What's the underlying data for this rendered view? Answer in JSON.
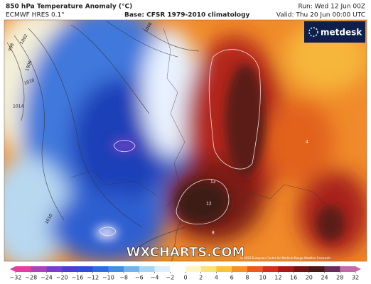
{
  "header": {
    "title": "850 hPa Temperature Anomaly (°C)",
    "model": "ECMWF HRES 0.1°",
    "base": "Base: CFSR 1979-2010 climatology",
    "run": "Run: Wed 12 Jun 00Z",
    "valid": "Valid: Thu 20 Jun 00:00 UTC"
  },
  "logo": "metdesk",
  "watermark": "WXCHARTS.COM",
  "copyright": "© 2020 European Centre for Medium-Range Weather Forecasts",
  "isobar_labels": [
    "998",
    "1002",
    "1006",
    "1010",
    "1014",
    "1010",
    "1006"
  ],
  "contour_labels": [
    "12",
    "12",
    "8",
    "4"
  ],
  "colorbar": {
    "ticks": [
      {
        "value": -32,
        "label": "−32"
      },
      {
        "value": -28,
        "label": "−28"
      },
      {
        "value": -24,
        "label": "−24"
      },
      {
        "value": -20,
        "label": "−20"
      },
      {
        "value": -16,
        "label": "−16"
      },
      {
        "value": -12,
        "label": "−12"
      },
      {
        "value": -10,
        "label": "−10"
      },
      {
        "value": -8,
        "label": "−8"
      },
      {
        "value": -6,
        "label": "−6"
      },
      {
        "value": -4,
        "label": "−4"
      },
      {
        "value": -2,
        "label": "−2"
      },
      0,
      2,
      4,
      6,
      8,
      10,
      12,
      16,
      20,
      24,
      28,
      32
    ],
    "colors": [
      "#e23fa0",
      "#b03fbf",
      "#7a3fc9",
      "#4a3fcf",
      "#2f4fd6",
      "#2a6fe0",
      "#3f8fe8",
      "#6fb4f0",
      "#a6d6f6",
      "#dcefff",
      "#ffffff",
      "#fff7c0",
      "#ffe27a",
      "#ffbf3f",
      "#f78f2a",
      "#ea5a1f",
      "#d2301a",
      "#a51a14",
      "#701512",
      "#4a1812",
      "#6a2a5a",
      "#c46aa8"
    ]
  }
}
